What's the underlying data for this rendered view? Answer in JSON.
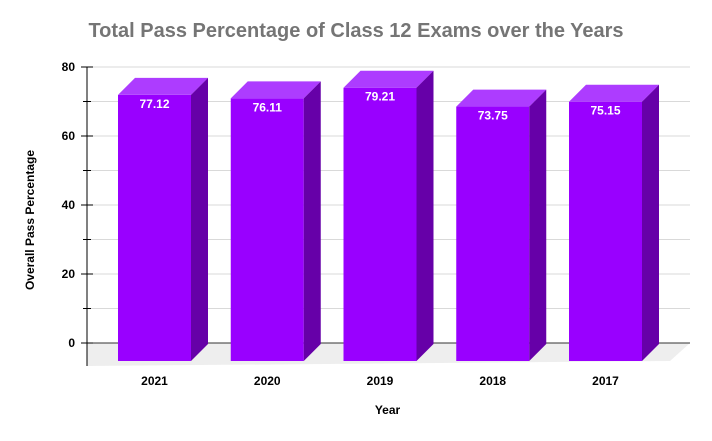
{
  "chart_data": {
    "type": "bar",
    "style": "3d-column",
    "title": "Total Pass Percentage of Class 12 Exams over the Years",
    "xlabel": "Year",
    "ylabel": "Overall Pass Percentage",
    "categories": [
      "2021",
      "2020",
      "2019",
      "2018",
      "2017"
    ],
    "values": [
      77.12,
      76.11,
      79.21,
      73.75,
      75.15
    ],
    "data_labels": [
      "77.12",
      "76.11",
      "79.21",
      "73.75",
      "75.15"
    ],
    "ylim": [
      0,
      80
    ],
    "yticks": [
      0,
      20,
      40,
      60,
      80
    ],
    "grid": true,
    "legend": null,
    "colors": {
      "bar_front": "#9900ff",
      "bar_top": "#ad3cff",
      "bar_side": "#6600a8",
      "floor": "#eeeeee",
      "grid": "#d9d9d9",
      "title": "#757575",
      "data_label": "#ffffff"
    }
  }
}
